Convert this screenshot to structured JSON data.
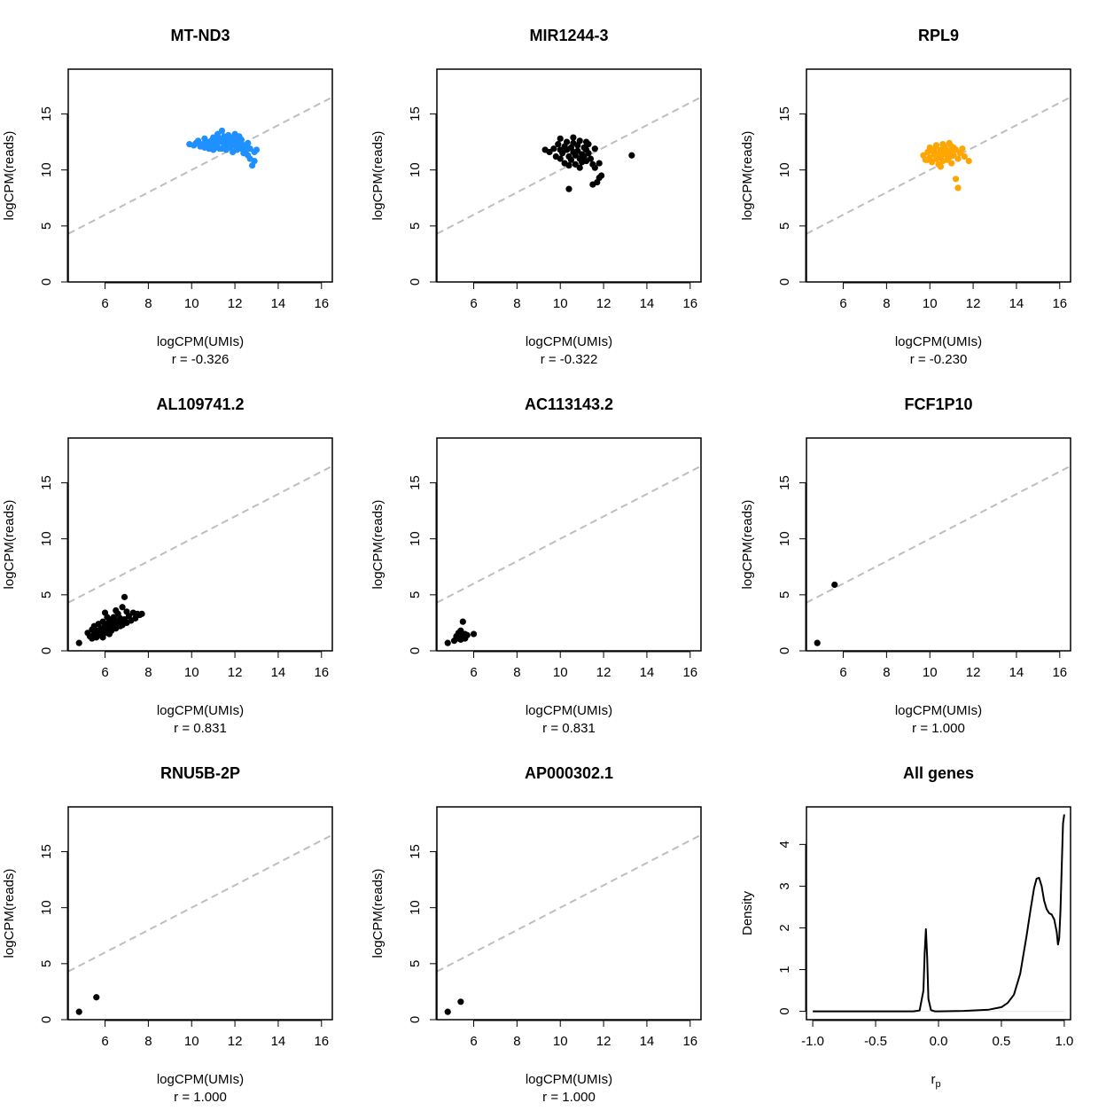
{
  "colors": {
    "blue": "#1e90ff",
    "black": "#000000",
    "orange": "#ffa500",
    "ref_line": "#bebebe",
    "zero_line": "#e6e6e6"
  },
  "chart_data": [
    {
      "type": "scatter",
      "title": "MT-ND3",
      "xlabel": "logCPM(UMIs)",
      "ylabel": "logCPM(reads)",
      "r_label": "r = -0.326",
      "xlim": [
        4.3,
        16.5
      ],
      "ylim": [
        0,
        19
      ],
      "xticks": [
        6,
        8,
        10,
        12,
        14,
        16
      ],
      "yticks": [
        0,
        5,
        10,
        15
      ],
      "reference_line": "y = x (dashed grey)",
      "point_color": "#1e90ff",
      "points": [
        [
          9.9,
          12.3
        ],
        [
          10.1,
          12.2
        ],
        [
          10.2,
          12.4
        ],
        [
          10.4,
          12.1
        ],
        [
          10.5,
          12.3
        ],
        [
          10.6,
          12.0
        ],
        [
          10.7,
          12.5
        ],
        [
          10.8,
          12.2
        ],
        [
          10.9,
          12.6
        ],
        [
          11.0,
          12.3
        ],
        [
          11.0,
          12.9
        ],
        [
          11.1,
          12.1
        ],
        [
          11.1,
          12.7
        ],
        [
          11.2,
          13.2
        ],
        [
          11.2,
          12.4
        ],
        [
          11.3,
          12.8
        ],
        [
          11.3,
          11.9
        ],
        [
          11.4,
          13.5
        ],
        [
          11.4,
          12.5
        ],
        [
          11.5,
          12.1
        ],
        [
          11.5,
          13.0
        ],
        [
          11.6,
          12.6
        ],
        [
          11.6,
          11.8
        ],
        [
          11.7,
          12.3
        ],
        [
          11.7,
          13.1
        ],
        [
          11.8,
          12.7
        ],
        [
          11.8,
          12.0
        ],
        [
          11.9,
          12.4
        ],
        [
          11.9,
          11.6
        ],
        [
          12.0,
          12.9
        ],
        [
          12.0,
          12.2
        ],
        [
          12.1,
          11.8
        ],
        [
          12.1,
          12.6
        ],
        [
          12.2,
          13.0
        ],
        [
          12.2,
          12.3
        ],
        [
          12.3,
          11.9
        ],
        [
          12.3,
          12.7
        ],
        [
          12.4,
          12.2
        ],
        [
          12.4,
          11.5
        ],
        [
          12.5,
          12.0
        ],
        [
          12.5,
          11.7
        ],
        [
          12.6,
          11.3
        ],
        [
          12.7,
          11.9
        ],
        [
          12.7,
          11.0
        ],
        [
          12.8,
          10.4
        ],
        [
          12.9,
          10.8
        ],
        [
          12.9,
          11.6
        ],
        [
          13.0,
          11.8
        ],
        [
          10.3,
          12.6
        ],
        [
          10.6,
          12.8
        ],
        [
          11.0,
          11.8
        ],
        [
          11.5,
          12.9
        ],
        [
          12.0,
          13.2
        ],
        [
          12.2,
          12.8
        ],
        [
          11.2,
          12.0
        ],
        [
          10.8,
          11.9
        ],
        [
          11.9,
          12.9
        ],
        [
          12.6,
          12.4
        ],
        [
          11.4,
          11.9
        ],
        [
          11.7,
          12.4
        ]
      ]
    },
    {
      "type": "scatter",
      "title": "MIR1244-3",
      "xlabel": "logCPM(UMIs)",
      "ylabel": "logCPM(reads)",
      "r_label": "r = -0.322",
      "xlim": [
        4.3,
        16.5
      ],
      "ylim": [
        0,
        19
      ],
      "xticks": [
        6,
        8,
        10,
        12,
        14,
        16
      ],
      "yticks": [
        0,
        5,
        10,
        15
      ],
      "reference_line": "y = x (dashed grey)",
      "point_color": "#000000",
      "points": [
        [
          9.3,
          11.8
        ],
        [
          9.5,
          11.6
        ],
        [
          9.8,
          11.2
        ],
        [
          9.9,
          12.3
        ],
        [
          10.0,
          11.0
        ],
        [
          10.0,
          12.8
        ],
        [
          10.1,
          11.5
        ],
        [
          10.2,
          12.1
        ],
        [
          10.2,
          10.6
        ],
        [
          10.3,
          11.8
        ],
        [
          10.3,
          12.5
        ],
        [
          10.4,
          11.2
        ],
        [
          10.4,
          8.3
        ],
        [
          10.5,
          12.0
        ],
        [
          10.5,
          10.9
        ],
        [
          10.6,
          11.6
        ],
        [
          10.6,
          12.9
        ],
        [
          10.7,
          11.3
        ],
        [
          10.7,
          10.5
        ],
        [
          10.8,
          12.2
        ],
        [
          10.8,
          11.7
        ],
        [
          10.9,
          11.0
        ],
        [
          10.9,
          12.6
        ],
        [
          11.0,
          11.4
        ],
        [
          11.0,
          10.7
        ],
        [
          11.1,
          12.0
        ],
        [
          11.1,
          11.2
        ],
        [
          11.2,
          11.8
        ],
        [
          11.2,
          10.8
        ],
        [
          11.3,
          11.5
        ],
        [
          11.3,
          12.3
        ],
        [
          11.4,
          11.0
        ],
        [
          11.5,
          10.5
        ],
        [
          11.5,
          8.7
        ],
        [
          11.6,
          11.9
        ],
        [
          11.6,
          10.2
        ],
        [
          11.7,
          8.9
        ],
        [
          11.8,
          9.3
        ],
        [
          11.8,
          10.6
        ],
        [
          11.9,
          9.5
        ],
        [
          13.3,
          11.3
        ],
        [
          10.0,
          11.8
        ],
        [
          10.6,
          12.4
        ],
        [
          11.2,
          12.5
        ],
        [
          10.4,
          10.4
        ],
        [
          9.7,
          11.9
        ],
        [
          10.9,
          10.2
        ]
      ]
    },
    {
      "type": "scatter",
      "title": "RPL9",
      "xlabel": "logCPM(UMIs)",
      "ylabel": "logCPM(reads)",
      "r_label": "r = -0.230",
      "xlim": [
        4.3,
        16.5
      ],
      "ylim": [
        0,
        19
      ],
      "xticks": [
        6,
        8,
        10,
        12,
        14,
        16
      ],
      "yticks": [
        0,
        5,
        10,
        15
      ],
      "reference_line": "y = x (dashed grey)",
      "point_color": "#ffa500",
      "points": [
        [
          9.7,
          11.3
        ],
        [
          9.8,
          10.9
        ],
        [
          9.9,
          11.6
        ],
        [
          10.0,
          11.1
        ],
        [
          10.0,
          12.0
        ],
        [
          10.1,
          10.7
        ],
        [
          10.2,
          11.4
        ],
        [
          10.2,
          11.9
        ],
        [
          10.3,
          11.0
        ],
        [
          10.3,
          12.2
        ],
        [
          10.4,
          11.5
        ],
        [
          10.4,
          10.5
        ],
        [
          10.5,
          11.8
        ],
        [
          10.5,
          11.1
        ],
        [
          10.6,
          12.3
        ],
        [
          10.6,
          10.8
        ],
        [
          10.7,
          11.4
        ],
        [
          10.7,
          12.0
        ],
        [
          10.8,
          11.7
        ],
        [
          10.8,
          10.9
        ],
        [
          10.9,
          12.4
        ],
        [
          10.9,
          11.2
        ],
        [
          11.0,
          11.6
        ],
        [
          11.0,
          10.6
        ],
        [
          11.1,
          12.0
        ],
        [
          11.1,
          11.3
        ],
        [
          11.2,
          11.8
        ],
        [
          11.2,
          9.2
        ],
        [
          11.3,
          11.0
        ],
        [
          11.3,
          8.4
        ],
        [
          11.4,
          11.5
        ],
        [
          11.5,
          11.9
        ],
        [
          11.6,
          11.2
        ],
        [
          11.8,
          10.8
        ],
        [
          10.1,
          11.7
        ],
        [
          10.5,
          10.3
        ],
        [
          10.6,
          11.5
        ],
        [
          11.0,
          12.1
        ],
        [
          9.9,
          10.9
        ]
      ]
    },
    {
      "type": "scatter",
      "title": "AL109741.2",
      "xlabel": "logCPM(UMIs)",
      "ylabel": "logCPM(reads)",
      "r_label": "r = 0.831",
      "xlim": [
        4.3,
        16.5
      ],
      "ylim": [
        0,
        19
      ],
      "xticks": [
        6,
        8,
        10,
        12,
        14,
        16
      ],
      "yticks": [
        0,
        5,
        10,
        15
      ],
      "reference_line": "y = x (dashed grey)",
      "point_color": "#000000",
      "points": [
        [
          4.8,
          0.7
        ],
        [
          5.2,
          1.6
        ],
        [
          5.3,
          1.3
        ],
        [
          5.4,
          1.9
        ],
        [
          5.5,
          1.5
        ],
        [
          5.5,
          2.2
        ],
        [
          5.6,
          1.2
        ],
        [
          5.6,
          1.8
        ],
        [
          5.7,
          2.4
        ],
        [
          5.7,
          1.6
        ],
        [
          5.8,
          2.0
        ],
        [
          5.8,
          1.4
        ],
        [
          5.9,
          2.6
        ],
        [
          5.9,
          1.9
        ],
        [
          6.0,
          2.2
        ],
        [
          6.0,
          1.6
        ],
        [
          6.0,
          3.4
        ],
        [
          6.1,
          2.4
        ],
        [
          6.1,
          1.9
        ],
        [
          6.2,
          2.8
        ],
        [
          6.2,
          2.1
        ],
        [
          6.3,
          2.5
        ],
        [
          6.3,
          1.8
        ],
        [
          6.4,
          3.0
        ],
        [
          6.4,
          2.2
        ],
        [
          6.5,
          2.7
        ],
        [
          6.5,
          2.0
        ],
        [
          6.6,
          3.3
        ],
        [
          6.6,
          2.4
        ],
        [
          6.7,
          2.9
        ],
        [
          6.7,
          2.2
        ],
        [
          6.8,
          2.6
        ],
        [
          6.8,
          3.9
        ],
        [
          6.9,
          4.8
        ],
        [
          6.9,
          2.8
        ],
        [
          7.0,
          2.5
        ],
        [
          7.1,
          3.1
        ],
        [
          7.2,
          2.7
        ],
        [
          7.3,
          3.4
        ],
        [
          7.4,
          2.9
        ],
        [
          7.5,
          3.3
        ],
        [
          7.6,
          3.2
        ],
        [
          7.7,
          3.3
        ],
        [
          6.1,
          3.0
        ],
        [
          5.9,
          1.2
        ],
        [
          6.5,
          3.6
        ],
        [
          7.0,
          3.5
        ],
        [
          6.2,
          1.5
        ],
        [
          5.4,
          1.1
        ],
        [
          6.8,
          2.3
        ]
      ]
    },
    {
      "type": "scatter",
      "title": "AC113143.2",
      "xlabel": "logCPM(UMIs)",
      "ylabel": "logCPM(reads)",
      "r_label": "r = 0.831",
      "xlim": [
        4.3,
        16.5
      ],
      "ylim": [
        0,
        19
      ],
      "xticks": [
        6,
        8,
        10,
        12,
        14,
        16
      ],
      "yticks": [
        0,
        5,
        10,
        15
      ],
      "reference_line": "y = x (dashed grey)",
      "point_color": "#000000",
      "points": [
        [
          4.8,
          0.7
        ],
        [
          5.1,
          0.9
        ],
        [
          5.2,
          1.3
        ],
        [
          5.3,
          1.1
        ],
        [
          5.3,
          1.6
        ],
        [
          5.4,
          1.0
        ],
        [
          5.4,
          1.8
        ],
        [
          5.5,
          1.3
        ],
        [
          5.5,
          2.6
        ],
        [
          5.6,
          1.5
        ],
        [
          5.6,
          1.1
        ],
        [
          5.7,
          1.4
        ],
        [
          6.0,
          1.5
        ]
      ]
    },
    {
      "type": "scatter",
      "title": "FCF1P10",
      "xlabel": "logCPM(UMIs)",
      "ylabel": "logCPM(reads)",
      "r_label": "r = 1.000",
      "xlim": [
        4.3,
        16.5
      ],
      "ylim": [
        0,
        19
      ],
      "xticks": [
        6,
        8,
        10,
        12,
        14,
        16
      ],
      "yticks": [
        0,
        5,
        10,
        15
      ],
      "reference_line": "y = x (dashed grey)",
      "point_color": "#000000",
      "points": [
        [
          4.8,
          0.7
        ],
        [
          5.6,
          5.9
        ]
      ]
    },
    {
      "type": "scatter",
      "title": "RNU5B-2P",
      "xlabel": "logCPM(UMIs)",
      "ylabel": "logCPM(reads)",
      "r_label": "r = 1.000",
      "xlim": [
        4.3,
        16.5
      ],
      "ylim": [
        0,
        19
      ],
      "xticks": [
        6,
        8,
        10,
        12,
        14,
        16
      ],
      "yticks": [
        0,
        5,
        10,
        15
      ],
      "reference_line": "y = x (dashed grey)",
      "point_color": "#000000",
      "points": [
        [
          4.8,
          0.7
        ],
        [
          5.6,
          2.0
        ]
      ]
    },
    {
      "type": "scatter",
      "title": "AP000302.1",
      "xlabel": "logCPM(UMIs)",
      "ylabel": "logCPM(reads)",
      "r_label": "r = 1.000",
      "xlim": [
        4.3,
        16.5
      ],
      "ylim": [
        0,
        19
      ],
      "xticks": [
        6,
        8,
        10,
        12,
        14,
        16
      ],
      "yticks": [
        0,
        5,
        10,
        15
      ],
      "reference_line": "y = x (dashed grey)",
      "point_color": "#000000",
      "points": [
        [
          4.8,
          0.7
        ],
        [
          5.4,
          1.6
        ]
      ]
    },
    {
      "type": "line",
      "title": "All genes",
      "xlabel": "r",
      "xlabel_subscript": "p",
      "ylabel": "Density",
      "xlim": [
        -1.05,
        1.05
      ],
      "ylim": [
        -0.2,
        4.9
      ],
      "xticks": [
        -1.0,
        -0.5,
        0.0,
        0.5,
        1.0
      ],
      "xtick_labels": [
        "-1.0",
        "-0.5",
        "0.0",
        "0.5",
        "1.0"
      ],
      "yticks": [
        0,
        1,
        2,
        3,
        4
      ],
      "zero_line": true,
      "x": [
        -1.0,
        -0.2,
        -0.15,
        -0.12,
        -0.11,
        -0.1,
        -0.09,
        -0.08,
        -0.06,
        -0.03,
        0.0,
        0.2,
        0.4,
        0.5,
        0.55,
        0.6,
        0.65,
        0.7,
        0.73,
        0.76,
        0.78,
        0.8,
        0.82,
        0.84,
        0.86,
        0.88,
        0.9,
        0.92,
        0.94,
        0.95,
        0.96,
        0.97,
        0.98,
        0.99,
        1.0
      ],
      "y": [
        0.0,
        0.0,
        0.02,
        0.5,
        1.4,
        1.97,
        1.3,
        0.3,
        0.03,
        0.0,
        0.0,
        0.01,
        0.04,
        0.1,
        0.2,
        0.4,
        0.9,
        1.8,
        2.4,
        2.95,
        3.18,
        3.2,
        3.0,
        2.65,
        2.45,
        2.35,
        2.32,
        2.2,
        1.9,
        1.6,
        1.75,
        2.4,
        3.5,
        4.5,
        4.72
      ]
    }
  ]
}
